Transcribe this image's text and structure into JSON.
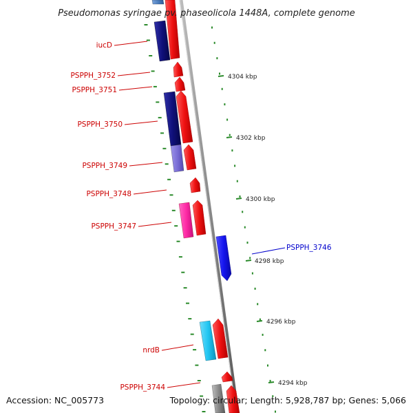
{
  "title": "Pseudomonas syringae pv. phaseolicola 1448A, complete genome",
  "accession": "Accession: NC_005773",
  "topology": "Topology: circular; Length: 5,928,787 bp; Genes: 5,066",
  "colors": {
    "forward_red": "#ee1111",
    "navy": "#10107a",
    "steel_blue": "#4e7fc0",
    "lavender": "#7b6fd6",
    "magenta": "#ff2aa6",
    "blue": "#1515ee",
    "cyan": "#22c6f2",
    "backbone": "#888888",
    "tick_green": "#2a8a2a",
    "label_red": "#cc0000",
    "label_blue": "#0000cc"
  },
  "scale_labels": [
    "4304 kbp",
    "4302 kbp",
    "4300 kbp",
    "4298 kbp",
    "4296 kbp",
    "4294 kbp"
  ],
  "gene_labels": [
    {
      "text": "iucD",
      "color": "red"
    },
    {
      "text": "PSPPH_3752",
      "color": "red"
    },
    {
      "text": "PSPPH_3751",
      "color": "red"
    },
    {
      "text": "PSPPH_3750",
      "color": "red"
    },
    {
      "text": "PSPPH_3749",
      "color": "red"
    },
    {
      "text": "PSPPH_3748",
      "color": "red"
    },
    {
      "text": "PSPPH_3747",
      "color": "red"
    },
    {
      "text": "PSPPH_3746",
      "color": "blue"
    },
    {
      "text": "nrdB",
      "color": "red"
    },
    {
      "text": "PSPPH_3744",
      "color": "red"
    }
  ]
}
